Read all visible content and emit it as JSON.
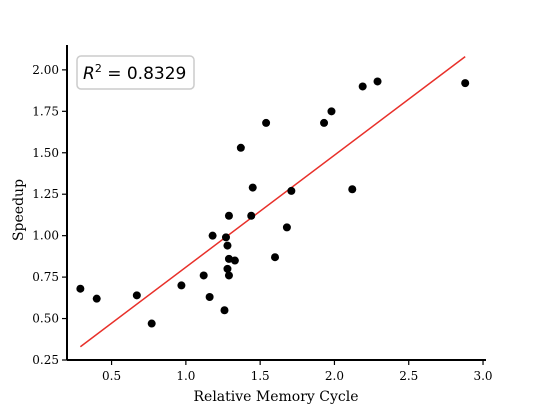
{
  "chart_data": {
    "type": "scatter",
    "title": "",
    "xlabel": "Relative Memory Cycle",
    "ylabel": "Speedup",
    "xlim": [
      0.2,
      3.02
    ],
    "ylim": [
      0.25,
      2.15
    ],
    "xticks": [
      0.5,
      1.0,
      1.5,
      2.0,
      2.5,
      3.0
    ],
    "xtick_labels": [
      "0.5",
      "1.0",
      "1.5",
      "2.0",
      "2.5",
      "3.0"
    ],
    "yticks": [
      0.25,
      0.5,
      0.75,
      1.0,
      1.25,
      1.5,
      1.75,
      2.0
    ],
    "ytick_labels": [
      "0.25",
      "0.50",
      "0.75",
      "1.00",
      "1.25",
      "1.50",
      "1.75",
      "2.00"
    ],
    "grid": false,
    "annotation": {
      "text_var": "R",
      "text_exp": "2",
      "text_rest": " = 0.8329",
      "placement": "top-left"
    },
    "fit_line": {
      "x": [
        0.29,
        2.88
      ],
      "y": [
        0.33,
        2.08
      ],
      "color": "#e8302a"
    },
    "point_color": "#000000",
    "points": [
      {
        "x": 0.29,
        "y": 0.68
      },
      {
        "x": 0.4,
        "y": 0.62
      },
      {
        "x": 0.67,
        "y": 0.64
      },
      {
        "x": 0.77,
        "y": 0.47
      },
      {
        "x": 0.97,
        "y": 0.7
      },
      {
        "x": 1.12,
        "y": 0.76
      },
      {
        "x": 1.16,
        "y": 0.63
      },
      {
        "x": 1.18,
        "y": 1.0
      },
      {
        "x": 1.26,
        "y": 0.55
      },
      {
        "x": 1.27,
        "y": 0.99
      },
      {
        "x": 1.28,
        "y": 0.94
      },
      {
        "x": 1.28,
        "y": 0.8
      },
      {
        "x": 1.29,
        "y": 0.86
      },
      {
        "x": 1.29,
        "y": 0.76
      },
      {
        "x": 1.29,
        "y": 1.12
      },
      {
        "x": 1.33,
        "y": 0.85
      },
      {
        "x": 1.37,
        "y": 1.53
      },
      {
        "x": 1.44,
        "y": 1.12
      },
      {
        "x": 1.45,
        "y": 1.29
      },
      {
        "x": 1.54,
        "y": 1.68
      },
      {
        "x": 1.6,
        "y": 0.87
      },
      {
        "x": 1.68,
        "y": 1.05
      },
      {
        "x": 1.71,
        "y": 1.27
      },
      {
        "x": 1.93,
        "y": 1.68
      },
      {
        "x": 1.98,
        "y": 1.75
      },
      {
        "x": 2.12,
        "y": 1.28
      },
      {
        "x": 2.19,
        "y": 1.9
      },
      {
        "x": 2.29,
        "y": 1.93
      },
      {
        "x": 2.88,
        "y": 1.92
      }
    ]
  }
}
